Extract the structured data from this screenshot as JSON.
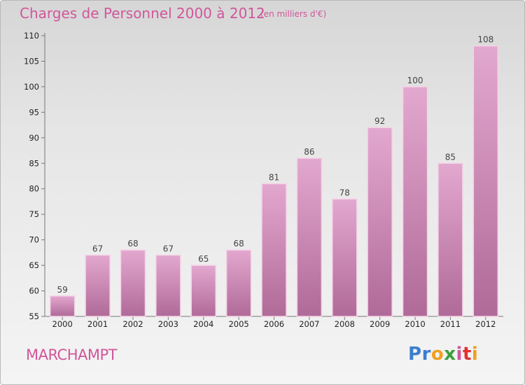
{
  "header": {
    "title": "Charges de Personnel 2000 à 2012",
    "subtitle": "(en milliers d'€)"
  },
  "footer": {
    "commune": "MARCHAMPT",
    "logo_text": "Proxiti"
  },
  "colors": {
    "title": "#d0579a",
    "bar_top": "#e3a8cf",
    "bar_bottom": "#b06a98",
    "logo": [
      "#3a7fd0",
      "#3a7fd0",
      "#f0a020",
      "#3a9f3a",
      "#d0579a",
      "#e03030",
      "#f0a020"
    ]
  },
  "chart_data": {
    "type": "bar",
    "title": "Charges de Personnel 2000 à 2012",
    "subtitle": "(en milliers d'€)",
    "categories": [
      "2000",
      "2001",
      "2002",
      "2003",
      "2004",
      "2005",
      "2006",
      "2007",
      "2008",
      "2009",
      "2010",
      "2011",
      "2012"
    ],
    "values": [
      59,
      67,
      68,
      67,
      65,
      68,
      81,
      86,
      78,
      92,
      100,
      85,
      108
    ],
    "ylim": [
      55,
      110
    ],
    "yticks": [
      55,
      60,
      65,
      70,
      75,
      80,
      85,
      90,
      95,
      100,
      105,
      110
    ],
    "grid": false,
    "xlabel": "",
    "ylabel": ""
  }
}
